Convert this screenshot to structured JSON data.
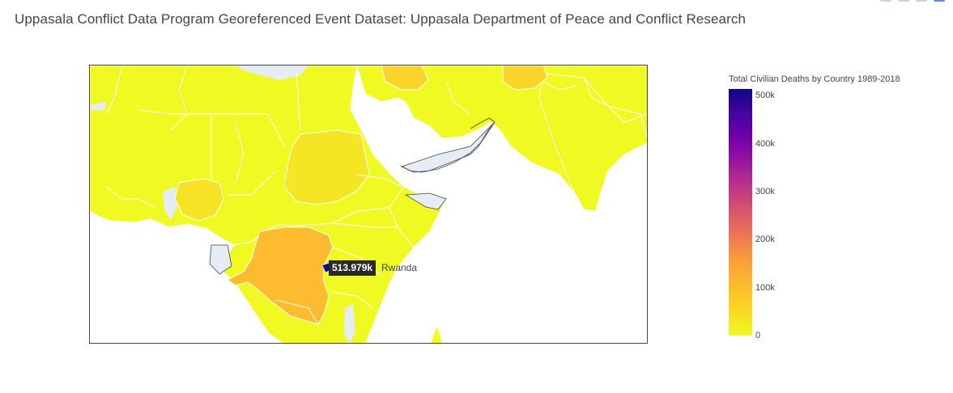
{
  "page": {
    "title": "Uppasala Conflict Data Program Georeferenced Event Dataset: Uppasala Department of Peace and Conflict Research"
  },
  "colorbar": {
    "title": "Total Civilian Deaths by Country 1989-2018",
    "ticks": [
      "500k",
      "400k",
      "300k",
      "200k",
      "100k",
      "0"
    ],
    "tick_values": [
      500000,
      400000,
      300000,
      200000,
      100000,
      0
    ],
    "range": [
      0,
      513979
    ],
    "colorscale": [
      "#0d0887",
      "#46039f",
      "#7201a8",
      "#9c179e",
      "#bd3786",
      "#d8576b",
      "#ed7953",
      "#fb9f3a",
      "#fdca26",
      "#f0f921"
    ]
  },
  "hover": {
    "value": "513.979k",
    "country": "Rwanda"
  },
  "map": {
    "land_color": "#f0f921",
    "ocean_color": "#ffffff",
    "no_data_color": "#e5ecf6",
    "border_color": "#ffffff",
    "highlight_colors": {
      "dr-congo": "#fdbb2f",
      "sudan": "#f5e625",
      "nigeria": "#f7e225",
      "iraq": "#fbd42a",
      "afghanistan": "#fad52a",
      "rwanda": "#0d0887"
    }
  }
}
